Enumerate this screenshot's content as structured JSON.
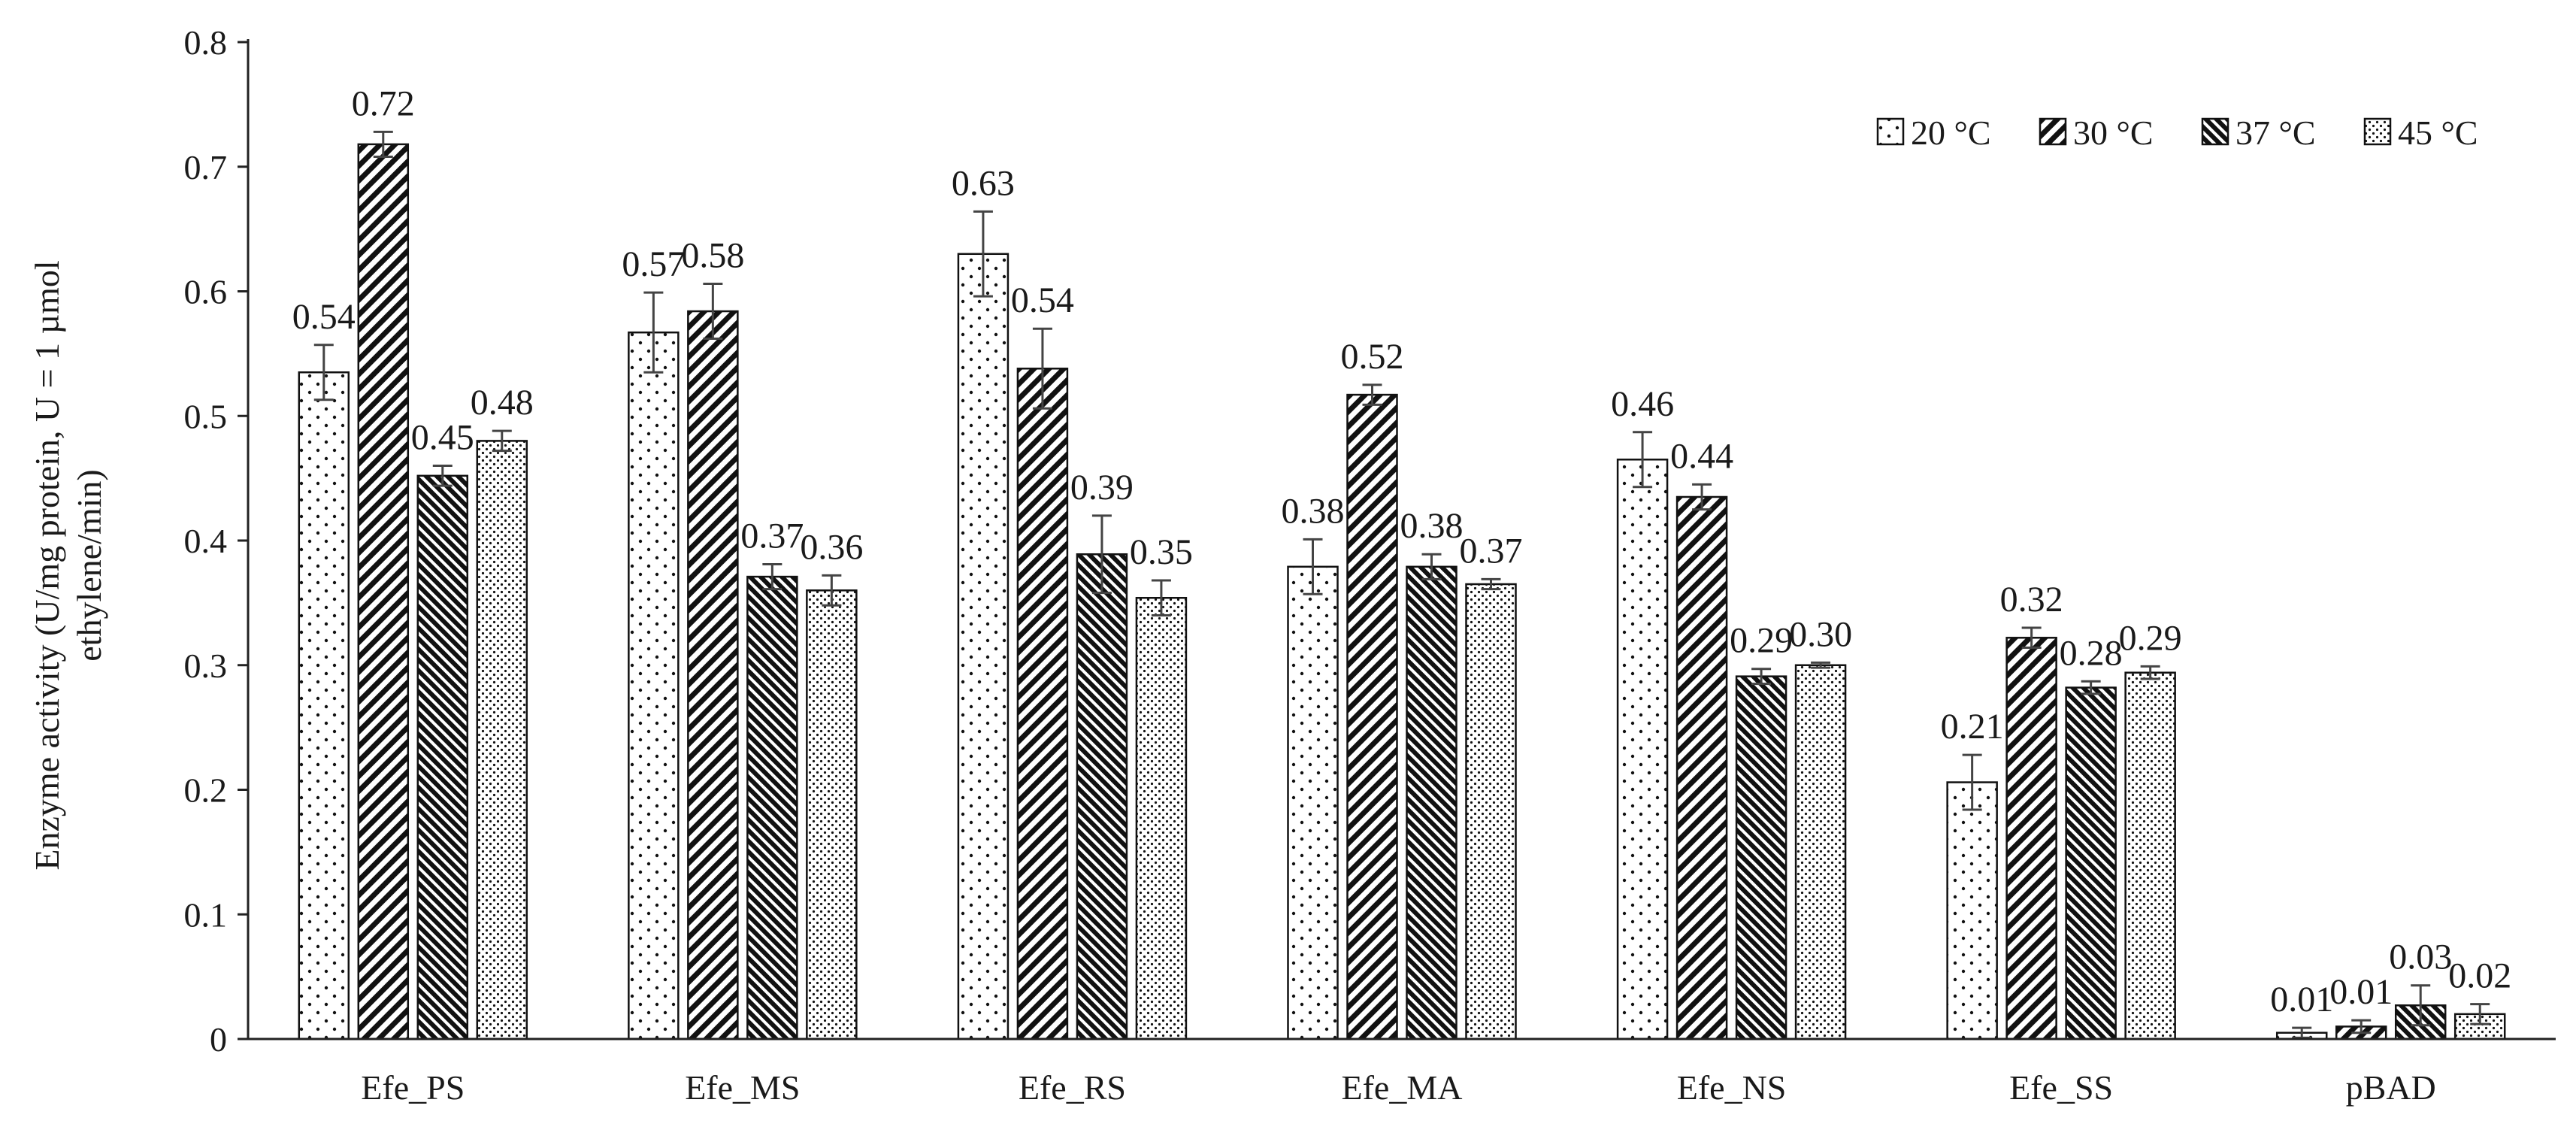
{
  "chart_data": {
    "type": "bar",
    "title": "",
    "xlabel": "",
    "ylabel": "Enzyme activity (U/mg protein, U = 1 µmol ethylene/min)",
    "ylabel_lines": [
      "Enzyme activity (U/mg protein, U = 1 µmol",
      "ethylene/min)"
    ],
    "ylim": [
      0,
      0.8
    ],
    "yticks": [
      "0",
      "0.1",
      "0.2",
      "0.3",
      "0.4",
      "0.5",
      "0.6",
      "0.7",
      "0.8"
    ],
    "grid": false,
    "legend_position": "top-right",
    "categories": [
      "Efe_PS",
      "Efe_MS",
      "Efe_RS",
      "Efe_MA",
      "Efe_NS",
      "Efe_SS",
      "pBAD"
    ],
    "series": [
      {
        "name": "20 °C",
        "pattern": "dots-sparse",
        "values": [
          0.535,
          0.567,
          0.63,
          0.379,
          0.465,
          0.206,
          0.005
        ],
        "errors": [
          0.022,
          0.032,
          0.034,
          0.022,
          0.022,
          0.022,
          0.004
        ],
        "labels": [
          "0.54",
          "0.57",
          "0.63",
          "0.38",
          "0.46",
          "0.21",
          "0.01"
        ]
      },
      {
        "name": "30 °C",
        "pattern": "diagonal-wide",
        "values": [
          0.718,
          0.584,
          0.538,
          0.517,
          0.435,
          0.322,
          0.01
        ],
        "errors": [
          0.01,
          0.022,
          0.032,
          0.008,
          0.01,
          0.008,
          0.005
        ],
        "labels": [
          "0.72",
          "0.58",
          "0.54",
          "0.52",
          "0.44",
          "0.32",
          "0.01"
        ]
      },
      {
        "name": "37 °C",
        "pattern": "diagonal-dense",
        "values": [
          0.452,
          0.371,
          0.389,
          0.379,
          0.291,
          0.282,
          0.027
        ],
        "errors": [
          0.008,
          0.01,
          0.031,
          0.01,
          0.006,
          0.005,
          0.016
        ],
        "labels": [
          "0.45",
          "0.37",
          "0.39",
          "0.38",
          "0.29",
          "0.28",
          "0.03"
        ]
      },
      {
        "name": "45 °C",
        "pattern": "dots-dense",
        "values": [
          0.48,
          0.36,
          0.354,
          0.365,
          0.3,
          0.294,
          0.02
        ],
        "errors": [
          0.008,
          0.012,
          0.014,
          0.004,
          0.002,
          0.005,
          0.008
        ],
        "labels": [
          "0.48",
          "0.36",
          "0.35",
          "0.37",
          "0.30",
          "0.29",
          "0.02"
        ]
      }
    ]
  }
}
